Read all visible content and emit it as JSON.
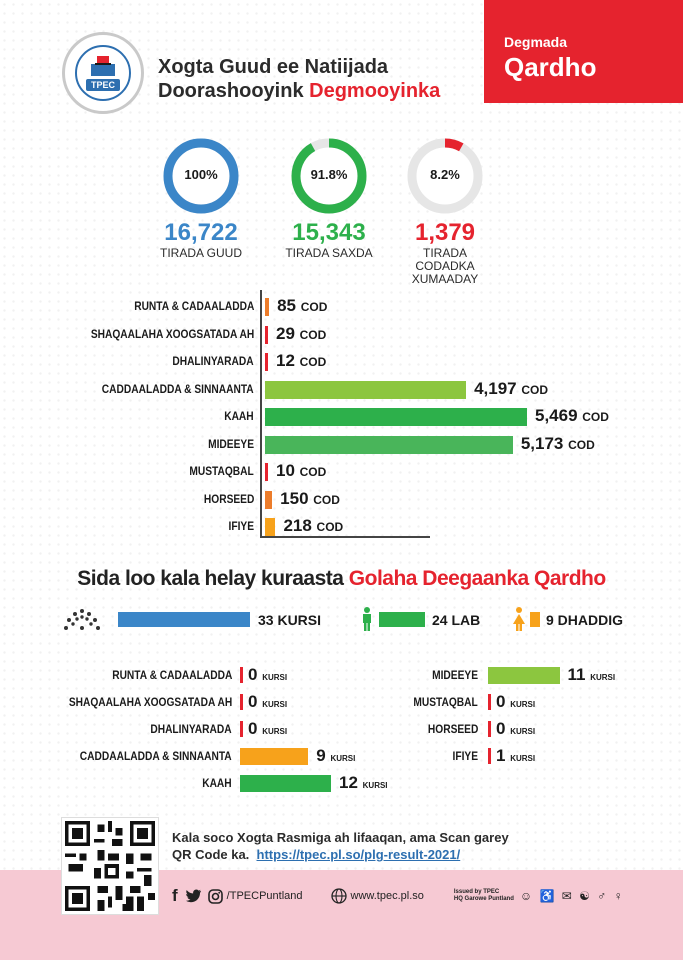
{
  "header": {
    "logo_text": "TPEC",
    "title_line1": "Xogta Guud ee Natiijada",
    "title_line2_plain": "Doorashooyink ",
    "title_line2_red": "Degmooyinka",
    "district_label": "Degmada",
    "district_name": "Qardho"
  },
  "stats": [
    {
      "percent": "100%",
      "fraction": 1.0,
      "value": "16,722",
      "label": "TIRADA GUUD",
      "color": "#3b86c8"
    },
    {
      "percent": "91.8%",
      "fraction": 0.918,
      "value": "15,343",
      "label": "TIRADA SAXDA",
      "color": "#2db04b"
    },
    {
      "percent": "8.2%",
      "fraction": 0.082,
      "value": "1,379",
      "label": "TIRADA CODADKA XUMAADAY",
      "color": "#e5232e"
    }
  ],
  "chart_data": {
    "type": "bar",
    "orientation": "horizontal",
    "unit_label": "COD",
    "categories": [
      "RUNTA & CADAALADDA",
      "SHAQAALAHA XOOGSATADA AH",
      "DHALINYARADA",
      "CADDAALADDA & SINNAANTA",
      "KAAH",
      "MIDEEYE",
      "MUSTAQBAL",
      "HORSEED",
      "IFIYE"
    ],
    "values": [
      85,
      29,
      12,
      4197,
      5469,
      5173,
      10,
      150,
      218
    ],
    "value_labels": [
      "85",
      "29",
      "12",
      "4,197",
      "5,469",
      "5,173",
      "10",
      "150",
      "218"
    ],
    "colors": [
      "#ec7c2a",
      "#e5232e",
      "#e5232e",
      "#8cc63f",
      "#2db04b",
      "#49b55a",
      "#e5232e",
      "#ec7c2a",
      "#f7a21b"
    ]
  },
  "seats": {
    "title_plain": "Sida loo kala helay kuraasta ",
    "title_red": "Golaha Deegaanka Qardho",
    "total": "33 KURSI",
    "men": "24 LAB",
    "women": "9 DHADDIG",
    "unit": "KURSI",
    "left": [
      {
        "name": "RUNTA & CADAALADDA",
        "value": "0",
        "count": 0,
        "color": "#e5232e"
      },
      {
        "name": "SHAQAALAHA XOOGSATADA AH",
        "value": "0",
        "count": 0,
        "color": "#e5232e"
      },
      {
        "name": "DHALINYARADA",
        "value": "0",
        "count": 0,
        "color": "#e5232e"
      },
      {
        "name": "CADDAALADDA & SINNAANTA",
        "value": "9",
        "count": 9,
        "color": "#f7a21b"
      },
      {
        "name": "KAAH",
        "value": "12",
        "count": 12,
        "color": "#2db04b"
      }
    ],
    "right": [
      {
        "name": "MIDEEYE",
        "value": "11",
        "count": 11,
        "color": "#8cc63f"
      },
      {
        "name": "MUSTAQBAL",
        "value": "0",
        "count": 0,
        "color": "#e5232e"
      },
      {
        "name": "HORSEED",
        "value": "0",
        "count": 0,
        "color": "#e5232e"
      },
      {
        "name": "IFIYE",
        "value": "1",
        "count": 1,
        "color": "#e5232e"
      }
    ]
  },
  "footer": {
    "line1": "Kala soco Xogta Rasmiga ah lifaaqan, ama Scan garey",
    "line2": "QR Code ka.",
    "link": "https://tpec.pl.so/plg-result-2021/",
    "social": "/TPECPuntland",
    "website": "www.tpec.pl.so",
    "issued1": "Issued by TPEC",
    "issued2": "HQ Garowe Puntland"
  }
}
